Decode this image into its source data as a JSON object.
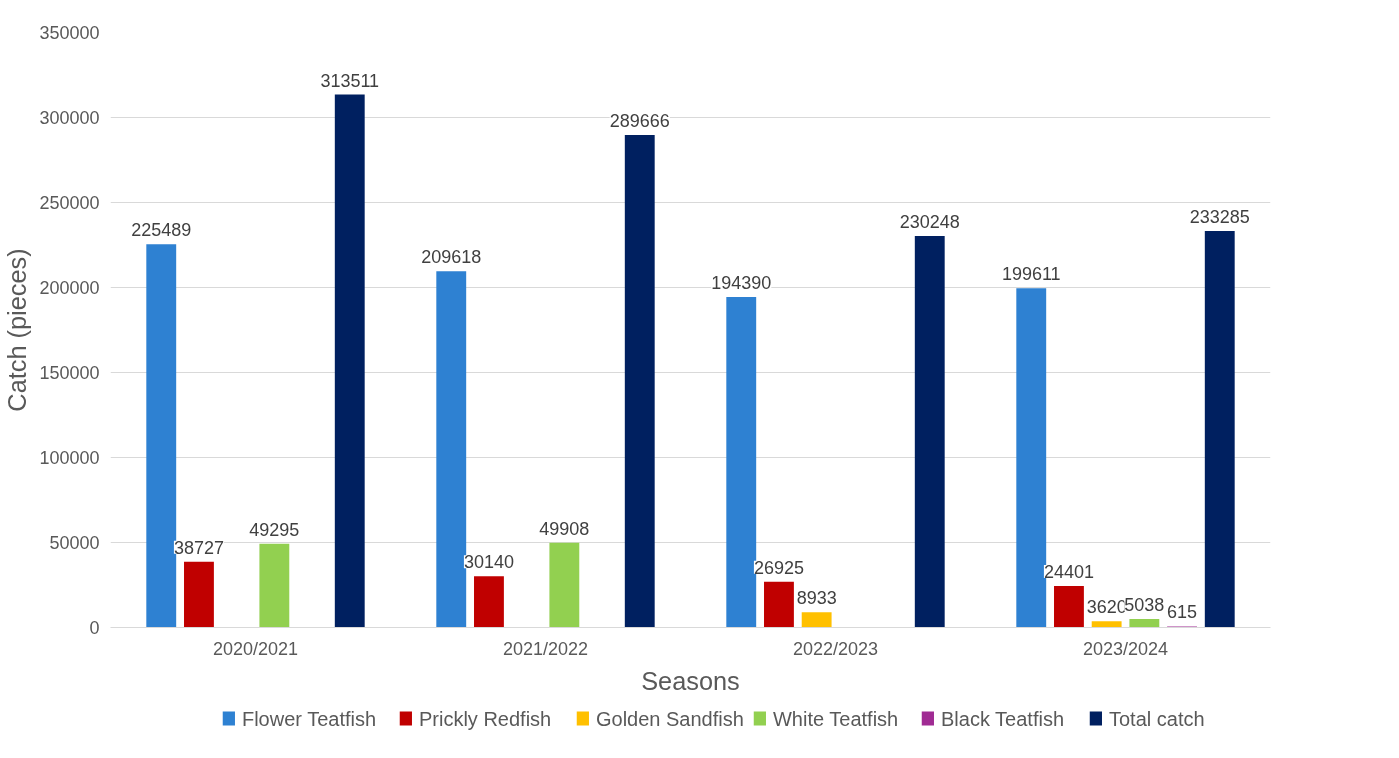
{
  "chart_data": {
    "type": "bar",
    "xlabel": "Seasons",
    "ylabel": "Catch (pieces)",
    "categories": [
      "2020/2021",
      "2021/2022",
      "2022/2023",
      "2023/2024"
    ],
    "series": [
      {
        "name": "Flower Teatfish",
        "color": "#2e81d2",
        "values": [
          225489,
          209618,
          194390,
          199611
        ]
      },
      {
        "name": "Prickly Redfish",
        "color": "#c00000",
        "values": [
          38727,
          30140,
          26925,
          24401
        ]
      },
      {
        "name": "Golden Sandfish",
        "color": "#ffc000",
        "values": [
          null,
          null,
          8933,
          3620
        ]
      },
      {
        "name": "White Teatfish",
        "color": "#92d050",
        "values": [
          49295,
          49908,
          null,
          5038
        ]
      },
      {
        "name": "Black Teatfish",
        "color": "#a02b93",
        "values": [
          null,
          null,
          null,
          615
        ]
      },
      {
        "name": "Total catch",
        "color": "#002060",
        "values": [
          313511,
          289666,
          230248,
          233285
        ]
      }
    ],
    "ylim": [
      0,
      350000
    ],
    "yticks": [
      0,
      50000,
      100000,
      150000,
      200000,
      250000,
      300000,
      350000
    ],
    "grid": "y",
    "legend": "bottom",
    "data_labels": true
  }
}
